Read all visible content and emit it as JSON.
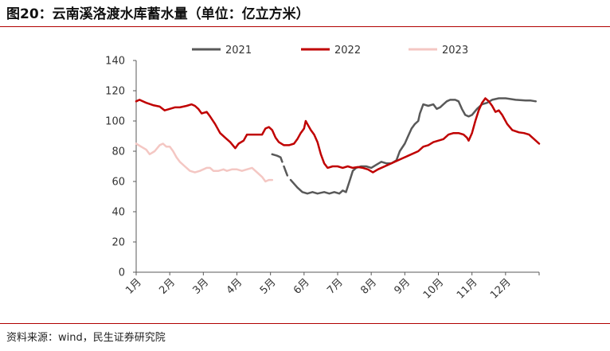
{
  "title": "图20：云南溪洛渡水库蓄水量（单位：亿立方米）",
  "source": "资料来源：wind，民生证券研究院",
  "chart_data": {
    "type": "line",
    "title": "",
    "xlabel": "",
    "ylabel": "",
    "ylim": [
      0,
      140
    ],
    "yticks": [
      0,
      20,
      40,
      60,
      80,
      100,
      120,
      140
    ],
    "xlim": [
      0,
      12
    ],
    "x_tick_labels": [
      "1月",
      "2月",
      "3月",
      "4月",
      "5月",
      "6月",
      "7月",
      "8月",
      "9月",
      "10月",
      "11月",
      "12月"
    ],
    "grid": false,
    "legend_position": "top",
    "series": [
      {
        "name": "2021",
        "color": "#595959",
        "segments": [
          [
            [
              4.05,
              78
            ],
            [
              4.2,
              77
            ],
            [
              4.3,
              76
            ],
            [
              4.35,
              73
            ]
          ],
          [
            [
              4.4,
              70
            ],
            [
              4.45,
              67
            ],
            [
              4.5,
              64
            ]
          ],
          [
            [
              4.6,
              61
            ],
            [
              4.8,
              56
            ],
            [
              4.95,
              53
            ],
            [
              5.1,
              52
            ],
            [
              5.25,
              53
            ],
            [
              5.4,
              52
            ],
            [
              5.6,
              53
            ],
            [
              5.75,
              52
            ],
            [
              5.9,
              53
            ],
            [
              6.05,
              52
            ],
            [
              6.15,
              54
            ],
            [
              6.25,
              53
            ],
            [
              6.35,
              60
            ],
            [
              6.45,
              67
            ],
            [
              6.55,
              69
            ],
            [
              6.7,
              70
            ],
            [
              6.85,
              70
            ],
            [
              7.0,
              69
            ],
            [
              7.15,
              71
            ],
            [
              7.3,
              73
            ],
            [
              7.45,
              72
            ],
            [
              7.6,
              72
            ],
            [
              7.75,
              74
            ],
            [
              7.85,
              80
            ],
            [
              8.0,
              85
            ],
            [
              8.1,
              90
            ],
            [
              8.2,
              95
            ],
            [
              8.3,
              98
            ],
            [
              8.4,
              100
            ],
            [
              8.45,
              105
            ],
            [
              8.55,
              111
            ],
            [
              8.7,
              110
            ],
            [
              8.85,
              111
            ],
            [
              8.95,
              108
            ],
            [
              9.05,
              109
            ],
            [
              9.15,
              111
            ],
            [
              9.25,
              113
            ],
            [
              9.35,
              114
            ],
            [
              9.5,
              114
            ],
            [
              9.6,
              113
            ],
            [
              9.7,
              108
            ],
            [
              9.8,
              104
            ],
            [
              9.9,
              103
            ],
            [
              10.0,
              104
            ],
            [
              10.15,
              108
            ],
            [
              10.3,
              111
            ],
            [
              10.45,
              112
            ],
            [
              10.6,
              114
            ],
            [
              10.8,
              115
            ],
            [
              11.0,
              115
            ],
            [
              11.3,
              114
            ],
            [
              11.6,
              113.5
            ],
            [
              11.75,
              113.5
            ],
            [
              11.9,
              113
            ]
          ]
        ]
      },
      {
        "name": "2022",
        "color": "#c00000",
        "segments": [
          [
            [
              0,
              113
            ],
            [
              0.1,
              114
            ],
            [
              0.3,
              112
            ],
            [
              0.5,
              110.5
            ],
            [
              0.7,
              109.5
            ],
            [
              0.85,
              107
            ],
            [
              1.0,
              108
            ],
            [
              1.15,
              109
            ],
            [
              1.3,
              109
            ],
            [
              1.5,
              110
            ],
            [
              1.65,
              111
            ],
            [
              1.75,
              110
            ],
            [
              1.85,
              108
            ],
            [
              1.95,
              105
            ],
            [
              2.1,
              106
            ],
            [
              2.2,
              103
            ],
            [
              2.35,
              98
            ],
            [
              2.5,
              92
            ],
            [
              2.65,
              89
            ],
            [
              2.8,
              86
            ],
            [
              2.95,
              82
            ],
            [
              3.05,
              85
            ],
            [
              3.2,
              87
            ],
            [
              3.3,
              91
            ],
            [
              3.45,
              91
            ],
            [
              3.6,
              91
            ],
            [
              3.75,
              91
            ],
            [
              3.85,
              95
            ],
            [
              3.95,
              96
            ],
            [
              4.05,
              94
            ],
            [
              4.15,
              89
            ],
            [
              4.25,
              86
            ],
            [
              4.4,
              84
            ],
            [
              4.55,
              84
            ],
            [
              4.7,
              85
            ],
            [
              4.8,
              88
            ],
            [
              4.9,
              92
            ],
            [
              5.0,
              95
            ],
            [
              5.05,
              100
            ],
            [
              5.1,
              98
            ],
            [
              5.2,
              94
            ],
            [
              5.3,
              91
            ],
            [
              5.4,
              86
            ],
            [
              5.5,
              78
            ],
            [
              5.6,
              72
            ],
            [
              5.7,
              69
            ],
            [
              5.85,
              70
            ],
            [
              6.0,
              70
            ],
            [
              6.15,
              69
            ],
            [
              6.3,
              70
            ],
            [
              6.45,
              69
            ],
            [
              6.6,
              69.5
            ],
            [
              6.75,
              69
            ],
            [
              6.9,
              68
            ],
            [
              7.05,
              66
            ],
            [
              7.2,
              68
            ],
            [
              7.5,
              71
            ],
            [
              7.8,
              74
            ],
            [
              8.1,
              77
            ],
            [
              8.4,
              80
            ],
            [
              8.55,
              83
            ],
            [
              8.7,
              84
            ],
            [
              8.85,
              86
            ],
            [
              9.0,
              87
            ],
            [
              9.15,
              88
            ],
            [
              9.3,
              91
            ],
            [
              9.45,
              92
            ],
            [
              9.6,
              92
            ],
            [
              9.75,
              91
            ],
            [
              9.85,
              89
            ],
            [
              9.9,
              87
            ],
            [
              10.0,
              92
            ],
            [
              10.1,
              100
            ],
            [
              10.2,
              107
            ],
            [
              10.3,
              112
            ],
            [
              10.4,
              115
            ],
            [
              10.5,
              113
            ],
            [
              10.6,
              110
            ],
            [
              10.7,
              106
            ],
            [
              10.8,
              107
            ],
            [
              10.9,
              104
            ],
            [
              11.05,
              98
            ],
            [
              11.2,
              94
            ],
            [
              11.4,
              92.5
            ],
            [
              11.55,
              92
            ],
            [
              11.7,
              91
            ],
            [
              11.85,
              88
            ],
            [
              12.0,
              85
            ]
          ]
        ]
      },
      {
        "name": "2023",
        "color": "#f4c7c3",
        "segments": [
          [
            [
              0,
              85
            ],
            [
              0.15,
              83
            ],
            [
              0.3,
              81
            ],
            [
              0.4,
              78
            ],
            [
              0.55,
              80
            ],
            [
              0.7,
              84
            ],
            [
              0.8,
              85
            ],
            [
              0.9,
              83
            ],
            [
              1.0,
              83
            ],
            [
              1.1,
              80
            ],
            [
              1.2,
              76
            ],
            [
              1.3,
              73
            ],
            [
              1.45,
              70
            ],
            [
              1.6,
              67
            ],
            [
              1.75,
              66
            ],
            [
              1.9,
              67
            ],
            [
              2.0,
              68
            ],
            [
              2.1,
              69
            ],
            [
              2.2,
              69
            ],
            [
              2.3,
              67
            ],
            [
              2.45,
              67
            ],
            [
              2.6,
              68
            ],
            [
              2.7,
              67
            ],
            [
              2.85,
              68
            ],
            [
              3.0,
              68
            ],
            [
              3.15,
              67
            ],
            [
              3.3,
              68
            ],
            [
              3.45,
              69
            ],
            [
              3.6,
              66
            ],
            [
              3.75,
              63
            ],
            [
              3.85,
              60
            ],
            [
              3.95,
              61
            ],
            [
              4.05,
              61
            ]
          ]
        ]
      }
    ]
  }
}
